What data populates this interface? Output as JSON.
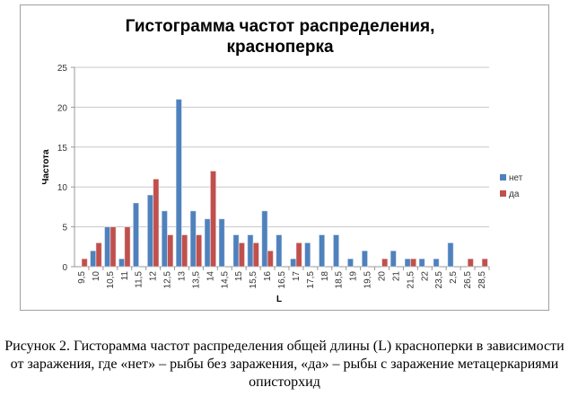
{
  "chart_data": {
    "type": "bar",
    "title": "Гистограмма частот распределения, красноперка",
    "title_lines": [
      "Гистограмма частот распределения,",
      "красноперка"
    ],
    "xlabel": "L",
    "ylabel": "Частота",
    "ylim": [
      0,
      25
    ],
    "yticks": [
      0,
      5,
      10,
      15,
      20,
      25
    ],
    "grid": true,
    "legend_position": "right",
    "categories": [
      "9,5",
      "10",
      "10,5",
      "11",
      "11,5",
      "12",
      "12,5",
      "13",
      "13,5",
      "14",
      "14,5",
      "15",
      "15,5",
      "16",
      "16,5",
      "17",
      "17,5",
      "18",
      "18,5",
      "19",
      "19,5",
      "20",
      "21",
      "21,5",
      "22",
      "23,5",
      "2,5",
      "26,5",
      "28,5"
    ],
    "series": [
      {
        "name": "нет",
        "color": "#4f81bd",
        "values": [
          0,
          2,
          5,
          1,
          8,
          9,
          7,
          21,
          7,
          6,
          6,
          4,
          4,
          7,
          4,
          1,
          3,
          4,
          4,
          1,
          2,
          0,
          2,
          1,
          1,
          1,
          3,
          0,
          0
        ]
      },
      {
        "name": "да",
        "color": "#c0504d",
        "values": [
          1,
          3,
          5,
          5,
          0,
          11,
          4,
          4,
          4,
          12,
          0,
          3,
          3,
          2,
          0,
          3,
          0,
          0,
          0,
          0,
          0,
          1,
          0,
          1,
          0,
          0,
          0,
          1,
          1
        ]
      }
    ]
  },
  "caption": "Рисунок 2. Гисторамма частот распределения общей длины (L) красноперки в зависимости от заражения, где «нет» – рыбы без заражения, «да» – рыбы с заражение метацеркариями описторхид"
}
